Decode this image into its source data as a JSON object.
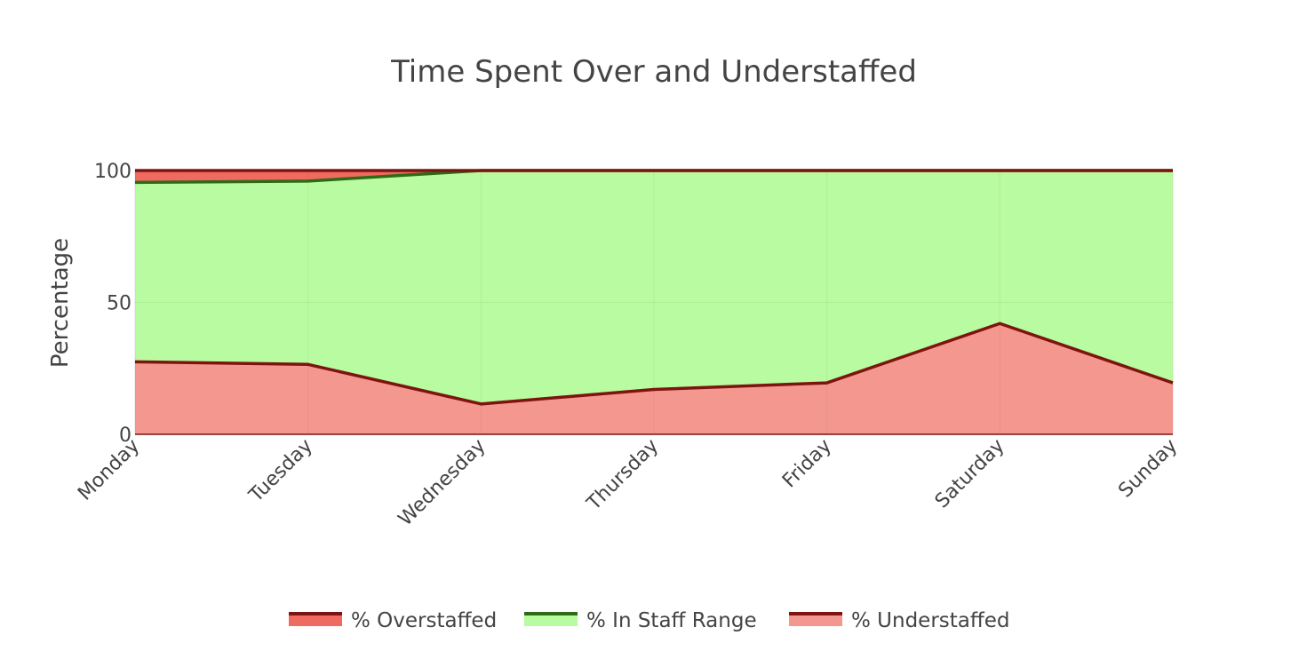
{
  "chart_data": {
    "type": "area",
    "title": "Time Spent Over and Understaffed",
    "xlabel": "",
    "ylabel": "Percentage",
    "categories": [
      "Monday",
      "Tuesday",
      "Wednesday",
      "Thursday",
      "Friday",
      "Saturday",
      "Sunday"
    ],
    "ylim": [
      0,
      100
    ],
    "yticks": [
      0,
      50,
      100
    ],
    "grid": true,
    "stacked": true,
    "legend_position": "bottom-center",
    "series": [
      {
        "name": "% Understaffed",
        "values": [
          27.5,
          26.5,
          11.5,
          17,
          19.5,
          42,
          19.5
        ],
        "fill": "#f4988f",
        "line": "#7d1410"
      },
      {
        "name": "% In Staff Range",
        "values": [
          68,
          69.5,
          88.5,
          83,
          80.5,
          58,
          80.5
        ],
        "fill": "#b9fba0",
        "line": "#2e6b15"
      },
      {
        "name": "% Overstaffed",
        "values": [
          4.5,
          4,
          0,
          0,
          0,
          0,
          0
        ],
        "fill": "#ef6b61",
        "line": "#7d1410"
      }
    ],
    "legend_order": [
      "% Overstaffed",
      "% In Staff Range",
      "% Understaffed"
    ]
  }
}
